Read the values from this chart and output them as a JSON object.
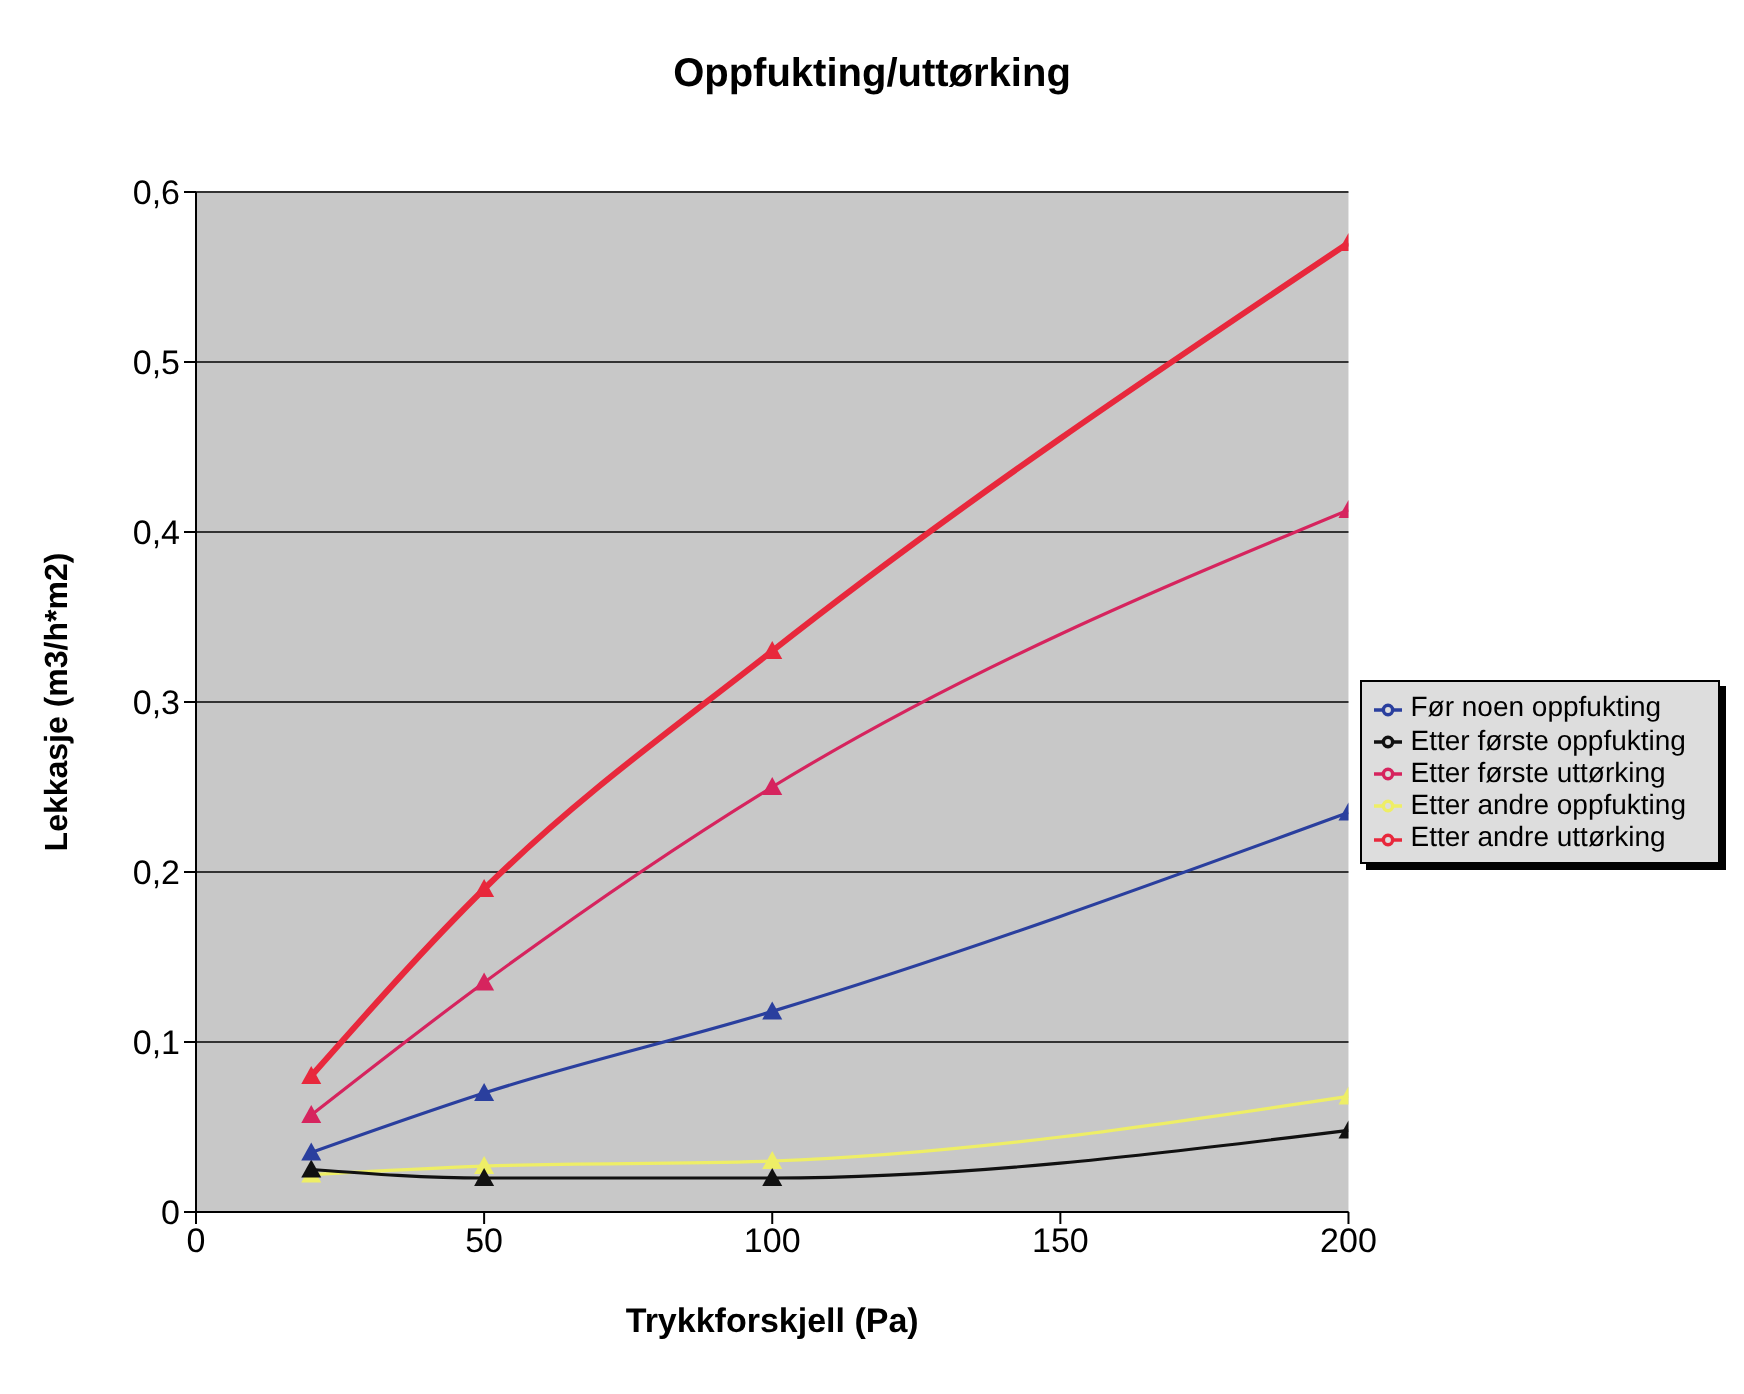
{
  "chart_data": {
    "type": "line",
    "title": "Oppfukting/uttørking",
    "xlabel": "Trykkforskjell (Pa)",
    "ylabel": "Lekkasje (m3/h*m2)",
    "x": [
      20,
      50,
      100,
      200
    ],
    "series": [
      {
        "name": "Før noen oppfukting",
        "color": "#2a3f9e",
        "values": [
          0.035,
          0.07,
          0.118,
          0.235
        ]
      },
      {
        "name": "Etter første oppfukting",
        "color": "#111111",
        "values": [
          0.025,
          0.02,
          0.02,
          0.048
        ]
      },
      {
        "name": "Etter første uttørking",
        "color": "#d6245e",
        "values": [
          0.057,
          0.135,
          0.25,
          0.413
        ]
      },
      {
        "name": "Etter andre oppfukting",
        "color": "#eeee66",
        "values": [
          0.022,
          0.027,
          0.03,
          0.068
        ]
      },
      {
        "name": "Etter andre uttørking",
        "color": "#e8283c",
        "values": [
          0.08,
          0.19,
          0.33,
          0.57
        ]
      }
    ],
    "xlim": [
      0,
      200
    ],
    "xticks": [
      0,
      50,
      100,
      150,
      200
    ],
    "ylim": [
      0,
      0.6
    ],
    "yticks": [
      0,
      {
        "value": 0.1,
        "label": "0,1"
      },
      {
        "value": 0.2,
        "label": "0,2"
      },
      {
        "value": 0.3,
        "label": "0,3"
      },
      {
        "value": 0.4,
        "label": "0,4"
      },
      {
        "value": 0.5,
        "label": "0,5"
      },
      {
        "value": 0.6,
        "label": "0,6"
      }
    ],
    "grid": "y",
    "legend": "right",
    "marker": "triangle",
    "line_style": "solid"
  }
}
